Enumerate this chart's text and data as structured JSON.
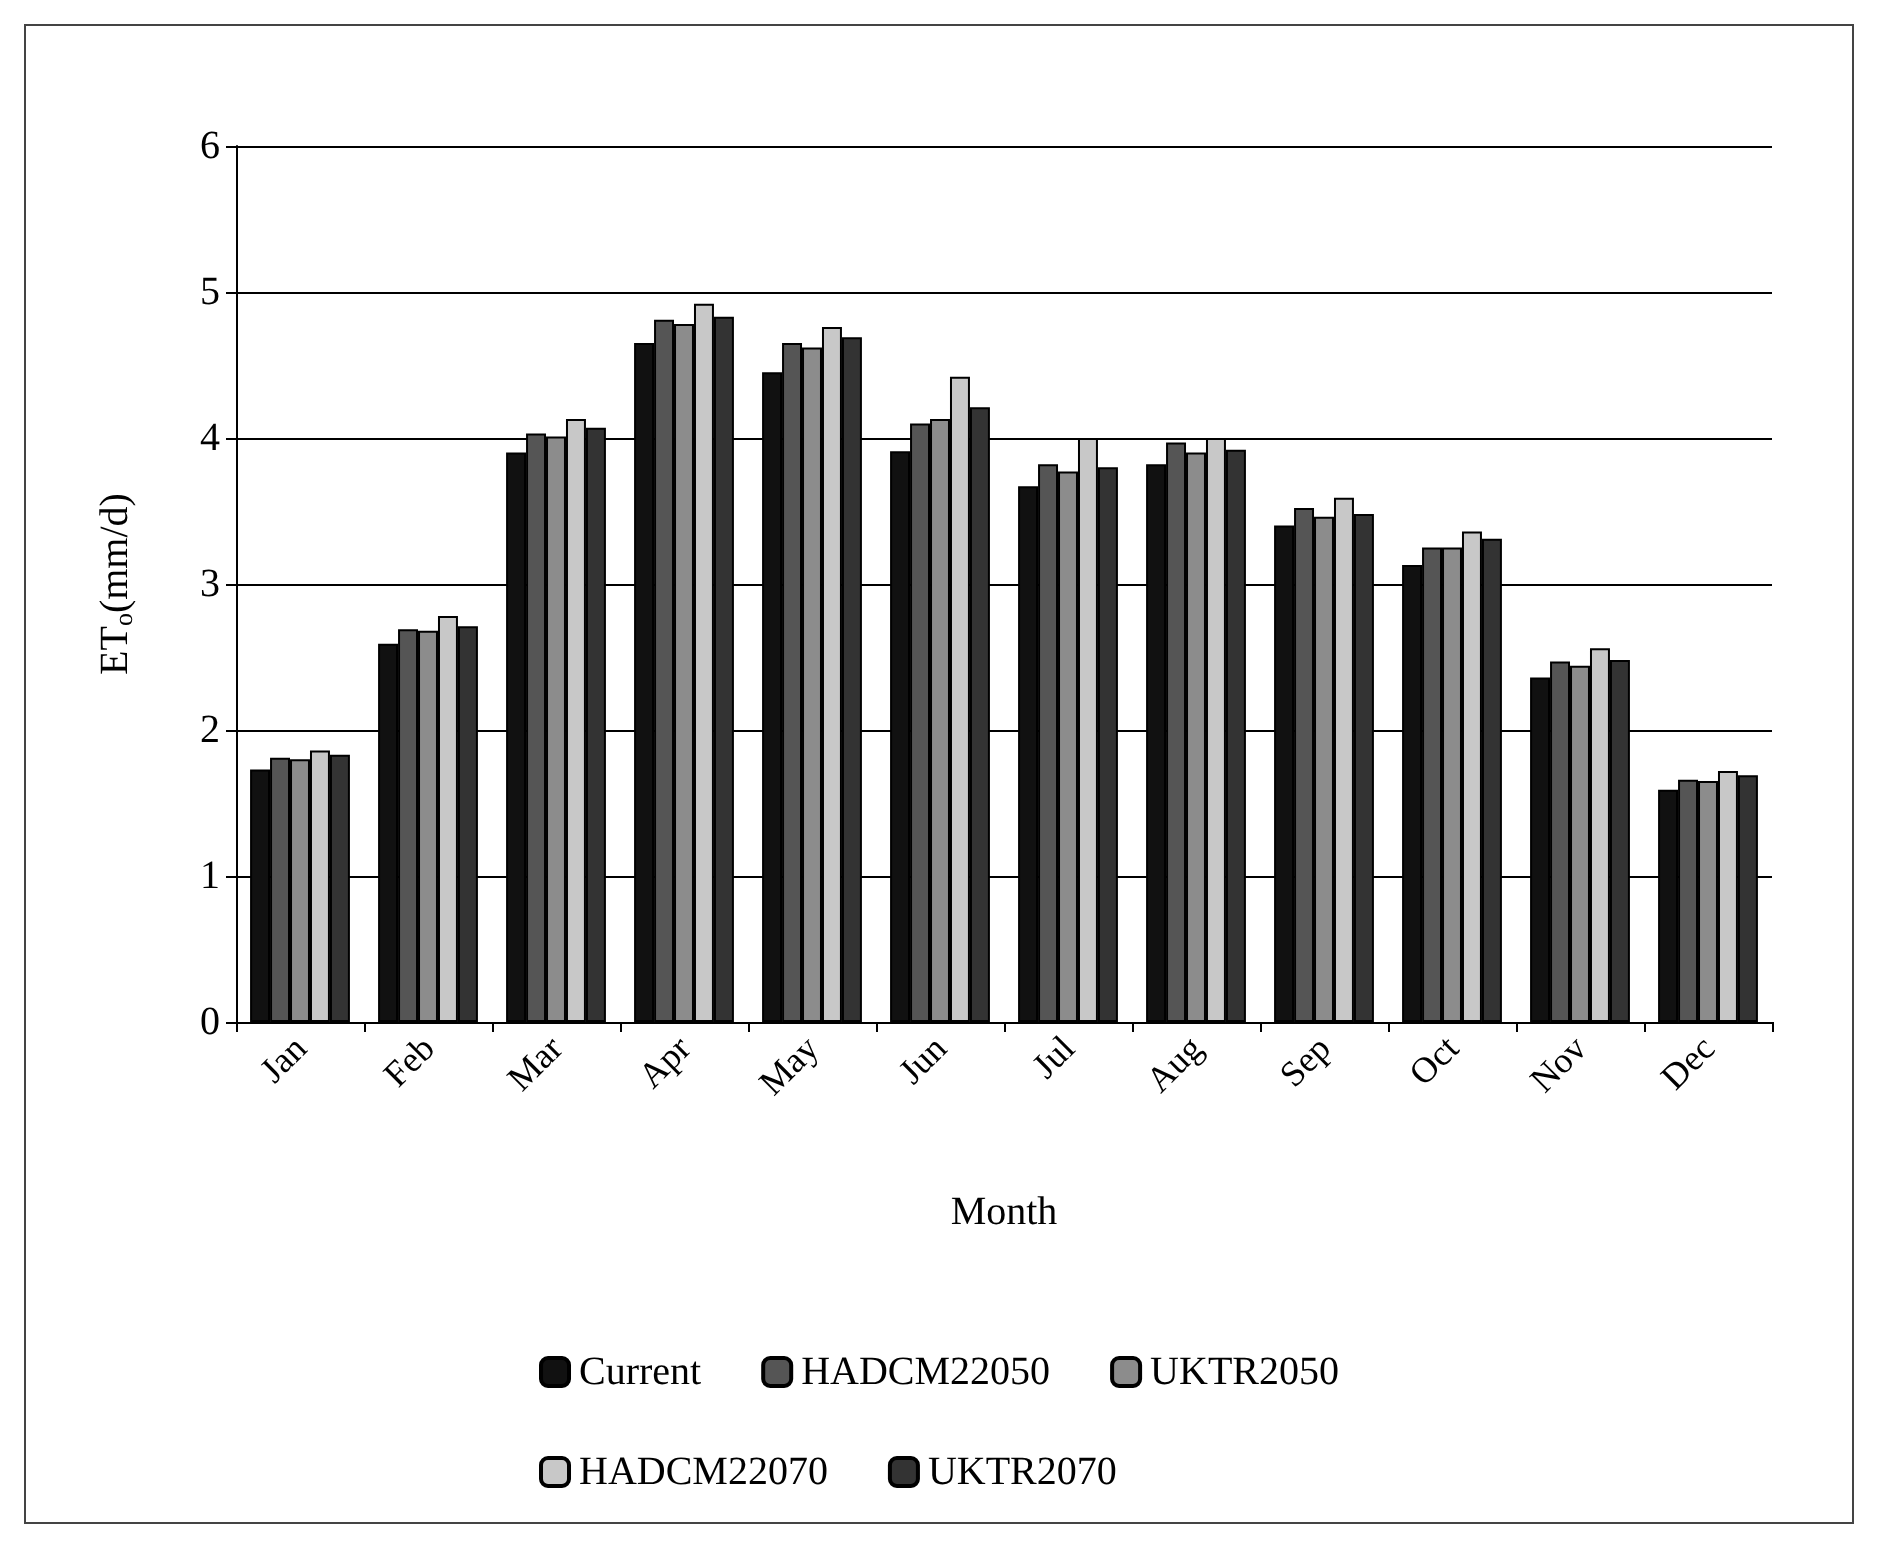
{
  "chart_data": {
    "type": "bar",
    "xlabel": "Month",
    "ylabel": "ET$_{o}$(mm/d)",
    "categories": [
      "Jan",
      "Feb",
      "Mar",
      "Apr",
      "May",
      "Jun",
      "Jul",
      "Aug",
      "Sep",
      "Oct",
      "Nov",
      "Dec"
    ],
    "series": [
      {
        "name": "Current",
        "color": "#111111",
        "values": [
          1.73,
          2.59,
          3.9,
          4.65,
          4.45,
          3.91,
          3.67,
          3.82,
          3.4,
          3.13,
          2.36,
          1.59
        ]
      },
      {
        "name": "HADCM22050",
        "color": "#555555",
        "values": [
          1.81,
          2.69,
          4.03,
          4.81,
          4.65,
          4.1,
          3.82,
          3.97,
          3.52,
          3.25,
          2.47,
          1.66
        ]
      },
      {
        "name": "UKTR2050",
        "color": "#8c8c8c",
        "values": [
          1.8,
          2.68,
          4.01,
          4.78,
          4.62,
          4.13,
          3.77,
          3.9,
          3.46,
          3.25,
          2.44,
          1.65
        ]
      },
      {
        "name": "HADCM22070",
        "color": "#c8c8c8",
        "values": [
          1.86,
          2.78,
          4.13,
          4.92,
          4.76,
          4.42,
          4.0,
          4.0,
          3.59,
          3.36,
          2.56,
          1.72
        ]
      },
      {
        "name": "UKTR2070",
        "color": "#333333",
        "values": [
          1.83,
          2.71,
          4.07,
          4.83,
          4.69,
          4.21,
          3.8,
          3.92,
          3.48,
          3.31,
          2.48,
          1.69
        ]
      }
    ],
    "ylim": [
      0,
      6
    ],
    "yticks": [
      0,
      1,
      2,
      3,
      4,
      5,
      6
    ],
    "grid": "y",
    "legend": "bottom"
  }
}
